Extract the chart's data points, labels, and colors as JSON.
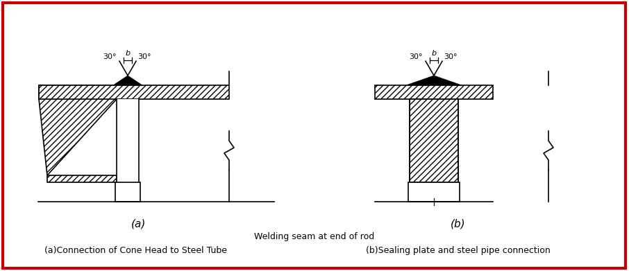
{
  "bg_color": "#ffffff",
  "border_color": "#cc0000",
  "line_color": "#000000",
  "hatch_pattern": "////",
  "fig_width": 9.06,
  "fig_height": 3.91,
  "title_a": "(a)",
  "title_b": "(b)",
  "caption_center": "Welding seam at end of rod",
  "caption_a": "(a)Connection of Cone Head to Steel Tube",
  "caption_b": "(b)Sealing plate and steel pipe connection",
  "angle_label_left": "30°",
  "angle_label_b": "b",
  "angle_label_right": "30°"
}
